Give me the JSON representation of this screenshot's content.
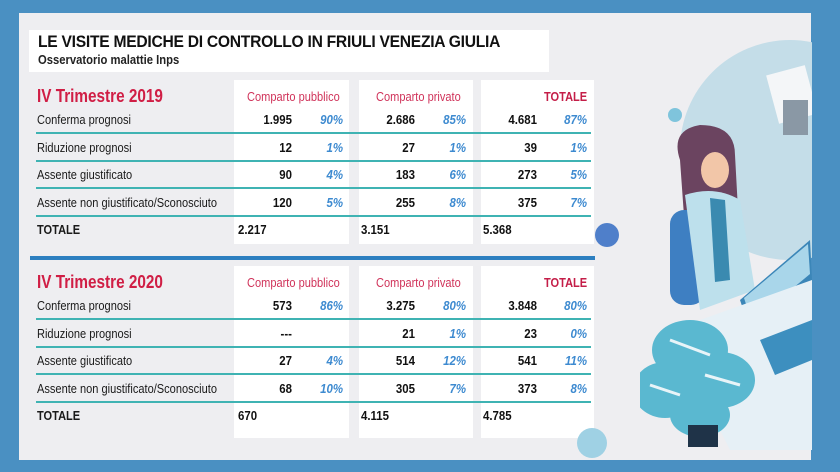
{
  "header": {
    "title": "LE VISITE MEDICHE DI CONTROLLO IN FRIULI VENEZIA GIULIA",
    "subtitle": "Osservatorio malattie Inps"
  },
  "columns": {
    "public": "Comparto pubblico",
    "private": "Comparto privato",
    "total": "TOTALE"
  },
  "row_labels": [
    "Conferma prognosi",
    "Riduzione prognosi",
    "Assente giustificato",
    "Assente non giustificato/Sconosciuto",
    "TOTALE"
  ],
  "chart_data": {
    "type": "table",
    "title": "LE VISITE MEDICHE DI CONTROLLO IN FRIULI VENEZIA GIULIA",
    "subtitle": "Osservatorio malattie Inps",
    "tables": [
      {
        "period": "IV Trimestre 2019",
        "rows": [
          {
            "label": "Conferma prognosi",
            "public": "1.995",
            "public_pct": "90%",
            "private": "2.686",
            "private_pct": "85%",
            "total": "4.681",
            "total_pct": "87%"
          },
          {
            "label": "Riduzione prognosi",
            "public": "12",
            "public_pct": "1%",
            "private": "27",
            "private_pct": "1%",
            "total": "39",
            "total_pct": "1%"
          },
          {
            "label": "Assente giustificato",
            "public": "90",
            "public_pct": "4%",
            "private": "183",
            "private_pct": "6%",
            "total": "273",
            "total_pct": "5%"
          },
          {
            "label": "Assente non giustificato/Sconosciuto",
            "public": "120",
            "public_pct": "5%",
            "private": "255",
            "private_pct": "8%",
            "total": "375",
            "total_pct": "7%"
          },
          {
            "label": "TOTALE",
            "public": "2.217",
            "public_pct": "",
            "private": "3.151",
            "private_pct": "",
            "total": "5.368",
            "total_pct": ""
          }
        ]
      },
      {
        "period": "IV Trimestre 2020",
        "rows": [
          {
            "label": "Conferma prognosi",
            "public": "573",
            "public_pct": "86%",
            "private": "3.275",
            "private_pct": "80%",
            "total": "3.848",
            "total_pct": "80%"
          },
          {
            "label": "Riduzione prognosi",
            "public": "---",
            "public_pct": "",
            "private": "21",
            "private_pct": "1%",
            "total": "23",
            "total_pct": "0%"
          },
          {
            "label": "Assente giustificato",
            "public": "27",
            "public_pct": "4%",
            "private": "514",
            "private_pct": "12%",
            "total": "541",
            "total_pct": "11%"
          },
          {
            "label": "Assente non giustificato/Sconosciuto",
            "public": "68",
            "public_pct": "10%",
            "private": "305",
            "private_pct": "7%",
            "total": "373",
            "total_pct": "8%"
          },
          {
            "label": "TOTALE",
            "public": "670",
            "public_pct": "",
            "private": "4.115",
            "private_pct": "",
            "total": "4.785",
            "total_pct": ""
          }
        ]
      }
    ]
  },
  "colors": {
    "background": "#4a90c2",
    "panel": "#eeeef1",
    "heading_red": "#d01e45",
    "percent_blue": "#3d8ad0",
    "separator_teal": "#3fb3b3",
    "divider_blue": "#2d7fc0"
  },
  "illustration": "doctor-at-desk-illustration"
}
